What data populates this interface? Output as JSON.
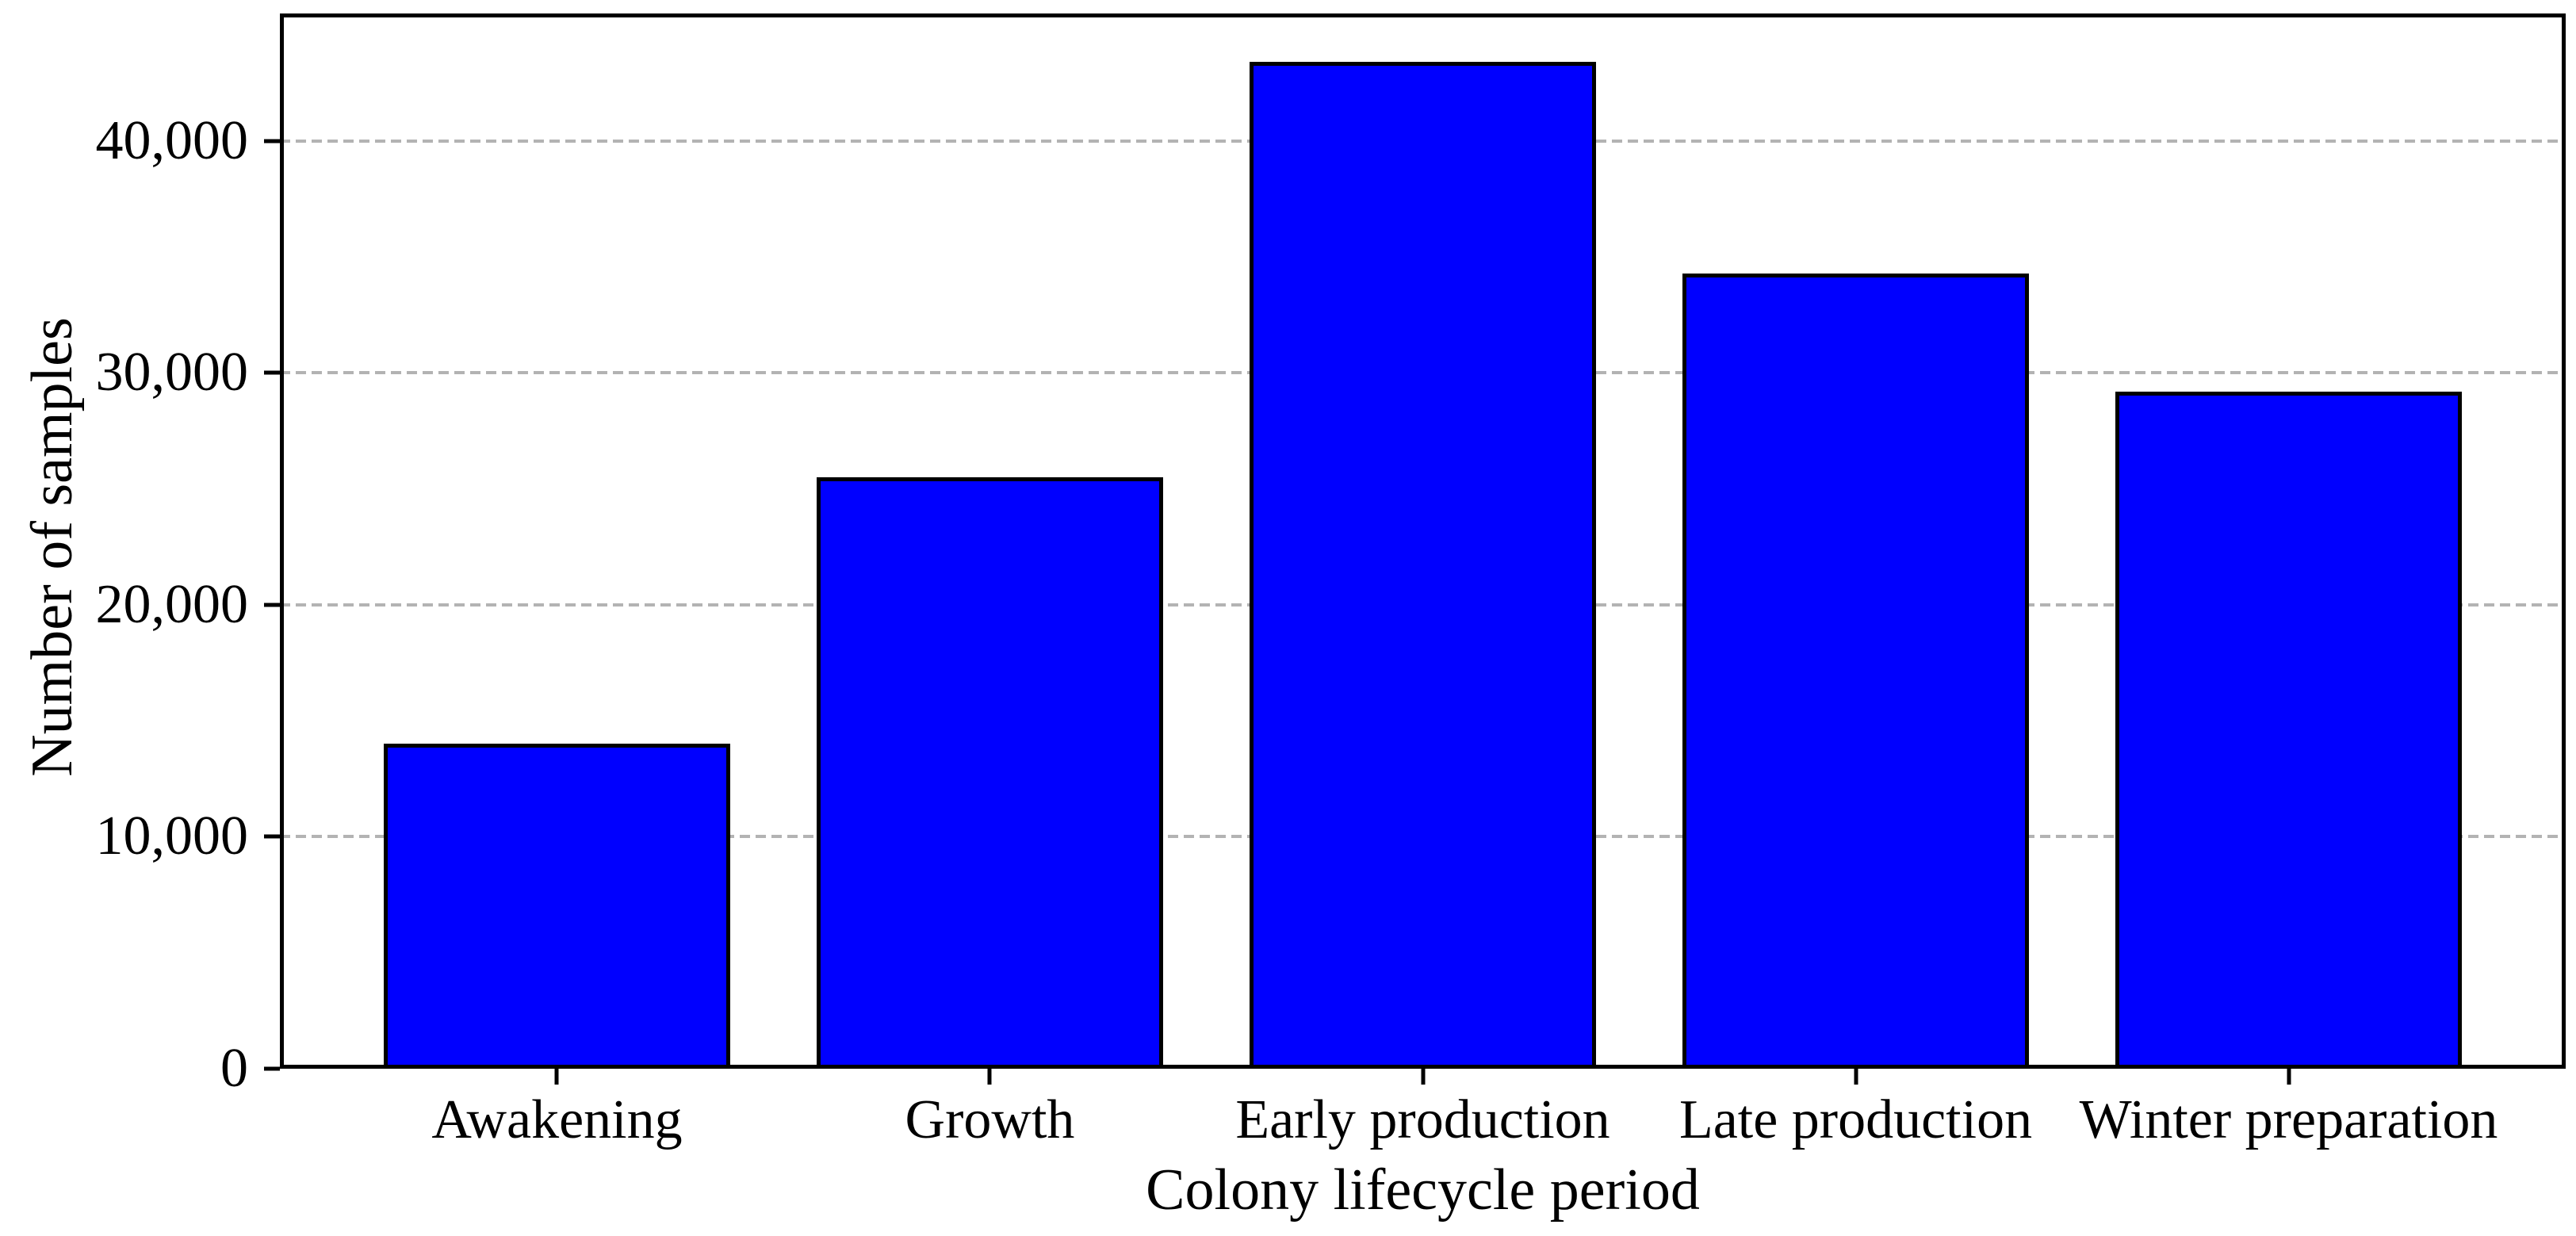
{
  "figure": {
    "background_color": "#ffffff",
    "text_color": "#000000"
  },
  "chart_data": {
    "type": "bar",
    "title": "",
    "xlabel": "Colony lifecycle period",
    "ylabel": "Number of samples",
    "categories": [
      "Awakening",
      "Growth",
      "Early production",
      "Late production",
      "Winter preparation"
    ],
    "values": [
      14000,
      25500,
      43400,
      34300,
      29200
    ],
    "bar_color": "#0000ff",
    "bar_edge_color": "#000000",
    "y_ticks": [
      {
        "value": 0,
        "label": "0"
      },
      {
        "value": 10000,
        "label": "10,000"
      },
      {
        "value": 20000,
        "label": "20,000"
      },
      {
        "value": 30000,
        "label": "30,000"
      },
      {
        "value": 40000,
        "label": "40,000"
      }
    ],
    "ylim": [
      0,
      45500
    ],
    "grid": {
      "axis": "y",
      "style": "dashed",
      "color": "#b3b3b3"
    },
    "legend": "none"
  }
}
